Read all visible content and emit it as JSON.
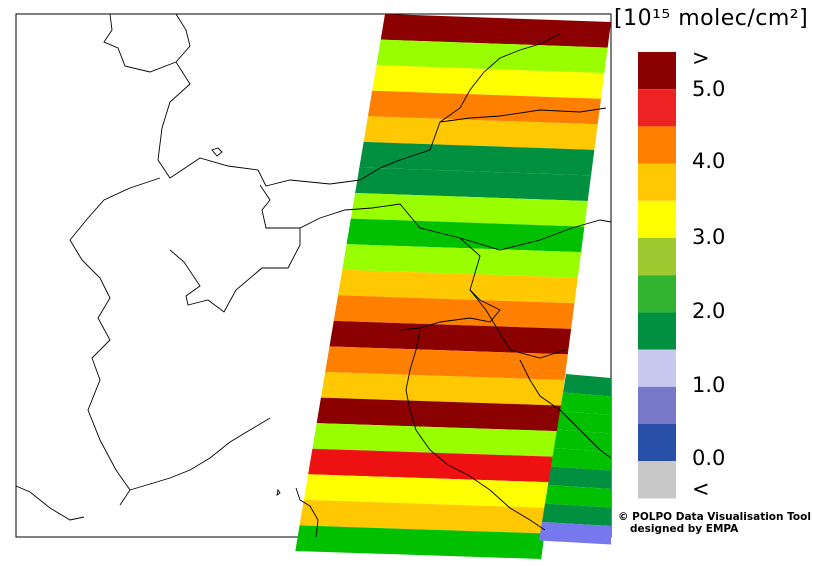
{
  "unit": "[10¹⁵ molec/cm²]",
  "legend": {
    "bins": [
      {
        "name": "above-max",
        "color": "#8b0000"
      },
      {
        "name": "4.5-5.0",
        "color": "#ee2222"
      },
      {
        "name": "4.0-4.5",
        "color": "#ff7f00"
      },
      {
        "name": "3.5-4.0",
        "color": "#ffc800"
      },
      {
        "name": "3.0-3.5",
        "color": "#ffff00"
      },
      {
        "name": "2.5-3.0",
        "color": "#a0c830"
      },
      {
        "name": "2.0-2.5",
        "color": "#32b432"
      },
      {
        "name": "1.5-2.0",
        "color": "#009040"
      },
      {
        "name": "1.0-1.5",
        "color": "#c8c8f0"
      },
      {
        "name": "0.5-1.0",
        "color": "#7878c8"
      },
      {
        "name": "0.0-0.5",
        "color": "#2850a8"
      },
      {
        "name": "below-min",
        "color": "#c8c8c8"
      }
    ],
    "labels": [
      ">",
      "5.0",
      "4.0",
      "3.0",
      "2.0",
      "1.0",
      "0.0",
      "<"
    ]
  },
  "credit": {
    "line1": "© POLPO Data Visualisation Tool",
    "line2": "designed by EMPA"
  },
  "swath": {
    "main_rows": [
      "#8b0000",
      "#99ff00",
      "#ffff00",
      "#ff7f00",
      "#ffc800",
      "#009040",
      "#009040",
      "#99ff00",
      "#00c000",
      "#99ff00",
      "#ffc800",
      "#ff7f00",
      "#8b0000",
      "#ff7f00",
      "#ffc800",
      "#8b0000",
      "#99ff00",
      "#ee1111",
      "#ffff00",
      "#ffc800",
      "#00c000"
    ],
    "east_rows": [
      "#009040",
      "#00c000",
      "#00c000",
      "#00c000",
      "#00c000",
      "#009040",
      "#00c000",
      "#009040",
      "#7878ee"
    ]
  }
}
